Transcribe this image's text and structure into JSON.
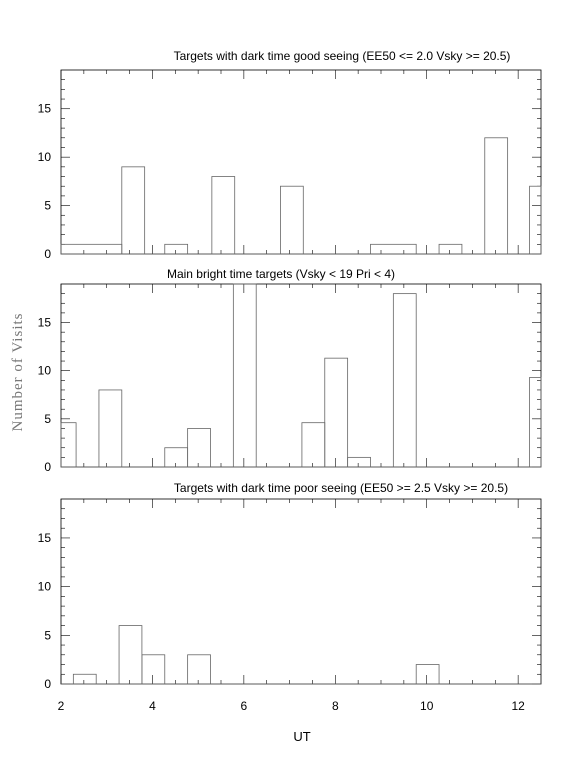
{
  "chart_data": [
    {
      "type": "histogram",
      "title": "Targets with dark time good seeing (EE50 <= 2.0 Vsky >= 20.5)",
      "xlim": [
        2,
        12.5
      ],
      "ylim": [
        0,
        19
      ],
      "yticks": [
        "0",
        "5",
        "10",
        "15"
      ],
      "bins": [
        {
          "x0": 2.0,
          "x1": 3.33,
          "y": 1
        },
        {
          "x0": 3.33,
          "x1": 3.83,
          "y": 9
        },
        {
          "x0": 3.83,
          "x1": 4.27,
          "y": 0
        },
        {
          "x0": 4.27,
          "x1": 4.77,
          "y": 1
        },
        {
          "x0": 4.77,
          "x1": 5.3,
          "y": 0
        },
        {
          "x0": 5.3,
          "x1": 5.8,
          "y": 8
        },
        {
          "x0": 5.8,
          "x1": 6.8,
          "y": 0
        },
        {
          "x0": 6.8,
          "x1": 7.3,
          "y": 7
        },
        {
          "x0": 7.3,
          "x1": 8.77,
          "y": 0
        },
        {
          "x0": 8.77,
          "x1": 9.77,
          "y": 1
        },
        {
          "x0": 9.77,
          "x1": 10.27,
          "y": 0
        },
        {
          "x0": 10.27,
          "x1": 10.77,
          "y": 1
        },
        {
          "x0": 10.77,
          "x1": 11.27,
          "y": 0
        },
        {
          "x0": 11.27,
          "x1": 11.77,
          "y": 12
        },
        {
          "x0": 11.77,
          "x1": 12.25,
          "y": 0
        },
        {
          "x0": 12.25,
          "x1": 12.5,
          "y": 7
        }
      ]
    },
    {
      "type": "histogram",
      "title": "Main bright time targets (Vsky < 19 Pri < 4)",
      "xlim": [
        2,
        12.5
      ],
      "ylim": [
        0,
        19
      ],
      "yticks": [
        "0",
        "5",
        "10",
        "15"
      ],
      "bins": [
        {
          "x0": 2.0,
          "x1": 2.33,
          "y": 4.6
        },
        {
          "x0": 2.33,
          "x1": 2.83,
          "y": 0
        },
        {
          "x0": 2.83,
          "x1": 3.33,
          "y": 8
        },
        {
          "x0": 3.33,
          "x1": 4.27,
          "y": 0
        },
        {
          "x0": 4.27,
          "x1": 4.77,
          "y": 2
        },
        {
          "x0": 4.77,
          "x1": 5.27,
          "y": 4
        },
        {
          "x0": 5.27,
          "x1": 5.77,
          "y": 0
        },
        {
          "x0": 5.77,
          "x1": 6.27,
          "y": 19
        },
        {
          "x0": 6.27,
          "x1": 7.27,
          "y": 0
        },
        {
          "x0": 7.27,
          "x1": 7.77,
          "y": 4.6
        },
        {
          "x0": 7.77,
          "x1": 8.27,
          "y": 11.3
        },
        {
          "x0": 8.27,
          "x1": 8.77,
          "y": 1
        },
        {
          "x0": 8.77,
          "x1": 9.27,
          "y": 0
        },
        {
          "x0": 9.27,
          "x1": 9.77,
          "y": 18
        },
        {
          "x0": 9.77,
          "x1": 12.25,
          "y": 0
        },
        {
          "x0": 12.25,
          "x1": 12.5,
          "y": 9.3
        }
      ]
    },
    {
      "type": "histogram",
      "title": "Targets with dark time poor seeing (EE50 >= 2.5 Vsky >= 20.5)",
      "xlim": [
        2,
        12.5
      ],
      "ylim": [
        0,
        19
      ],
      "yticks": [
        "0",
        "5",
        "10",
        "15"
      ],
      "xlabel": "UT",
      "xticks": [
        "2",
        "4",
        "6",
        "8",
        "10",
        "12"
      ],
      "bins": [
        {
          "x0": 2.0,
          "x1": 2.27,
          "y": 0
        },
        {
          "x0": 2.27,
          "x1": 2.77,
          "y": 1
        },
        {
          "x0": 2.77,
          "x1": 3.27,
          "y": 0
        },
        {
          "x0": 3.27,
          "x1": 3.77,
          "y": 6
        },
        {
          "x0": 3.77,
          "x1": 4.27,
          "y": 3
        },
        {
          "x0": 4.27,
          "x1": 4.77,
          "y": 0
        },
        {
          "x0": 4.77,
          "x1": 5.27,
          "y": 3
        },
        {
          "x0": 5.27,
          "x1": 9.77,
          "y": 0
        },
        {
          "x0": 9.77,
          "x1": 10.27,
          "y": 2
        },
        {
          "x0": 10.27,
          "x1": 12.5,
          "y": 0
        }
      ]
    }
  ],
  "ylabel": "Number of Visits"
}
